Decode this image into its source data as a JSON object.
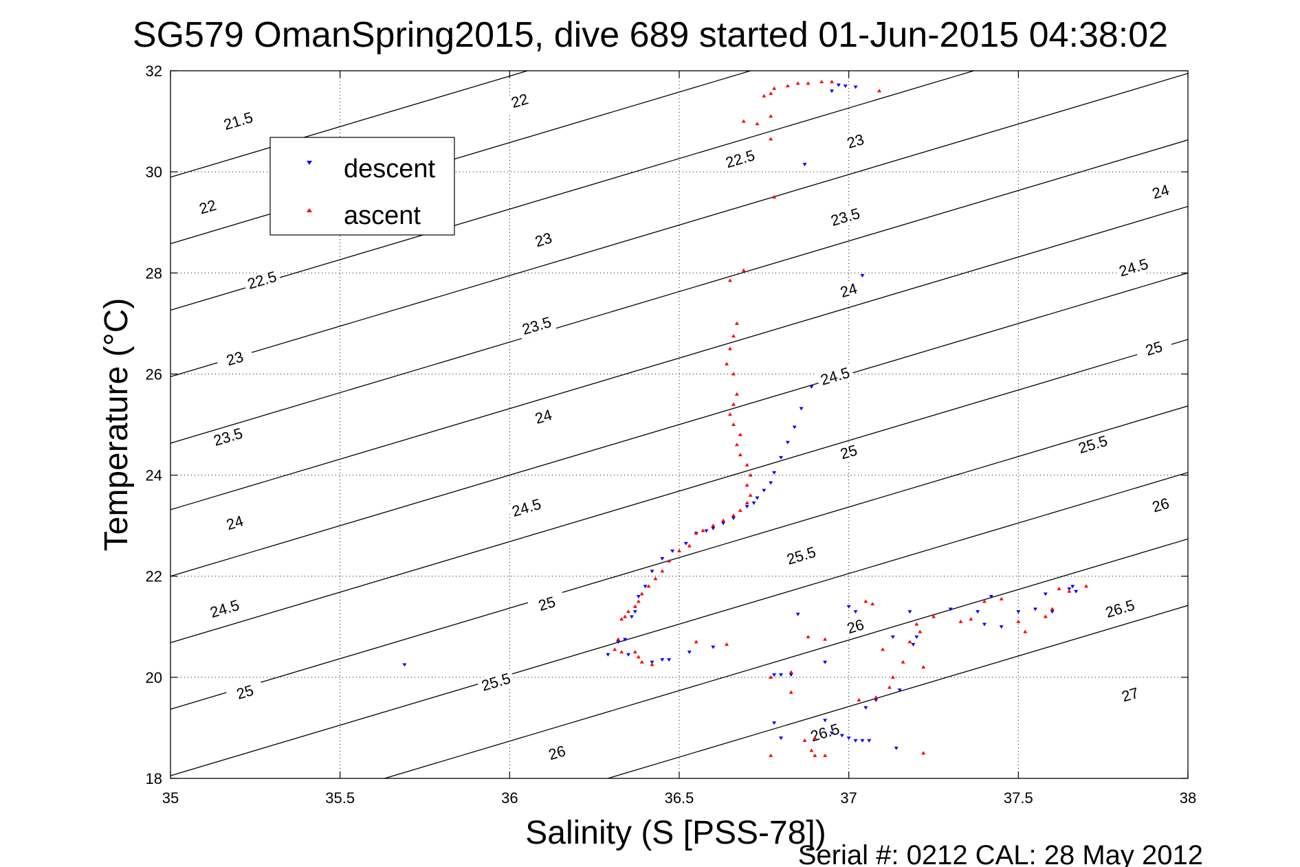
{
  "chart_data": {
    "type": "scatter",
    "title": "SG579 OmanSpring2015, dive 689 started 01-Jun-2015 04:38:02",
    "xlabel": "Salinity (S [PSS-78])",
    "ylabel": "Temperature (°C)",
    "footer": "Serial #: 0212  CAL: 28 May 2012",
    "xlim": [
      35,
      38
    ],
    "ylim": [
      18,
      32
    ],
    "xticks": [
      35,
      35.5,
      36,
      36.5,
      37,
      37.5,
      38
    ],
    "xtick_labels": [
      "35",
      "35.5",
      "36",
      "36.5",
      "37",
      "37.5",
      "38"
    ],
    "yticks": [
      18,
      20,
      22,
      24,
      26,
      28,
      30,
      32
    ],
    "ytick_labels": [
      "18",
      "20",
      "22",
      "24",
      "26",
      "28",
      "30",
      "32"
    ],
    "grid": true,
    "legend_position": "upper-left",
    "colors": {
      "descent": "#0000ff",
      "ascent": "#ff0000",
      "contour": "#000000"
    },
    "density_contours": {
      "levels": [
        21.5,
        22,
        22.5,
        23,
        23.5,
        24,
        24.5,
        25,
        25.5,
        26,
        26.5,
        27
      ],
      "labels": [
        {
          "text": "21.5",
          "s": 35.2,
          "t": 31.0
        },
        {
          "text": "22",
          "s": 36.03,
          "t": 31.4
        },
        {
          "text": "22.5",
          "s": 36.68,
          "t": 30.25
        },
        {
          "text": "23",
          "s": 37.02,
          "t": 30.6
        },
        {
          "text": "22",
          "s": 35.11,
          "t": 29.3
        },
        {
          "text": "23",
          "s": 36.1,
          "t": 28.65
        },
        {
          "text": "23.5",
          "s": 36.99,
          "t": 29.1
        },
        {
          "text": "24",
          "s": 37.92,
          "t": 29.6
        },
        {
          "text": "22.5",
          "s": 35.27,
          "t": 27.85
        },
        {
          "text": "23.5",
          "s": 36.08,
          "t": 26.95
        },
        {
          "text": "24",
          "s": 37.0,
          "t": 27.65
        },
        {
          "text": "24.5",
          "s": 37.84,
          "t": 28.1
        },
        {
          "text": "23",
          "s": 35.19,
          "t": 26.3
        },
        {
          "text": "24",
          "s": 36.1,
          "t": 25.15
        },
        {
          "text": "24.5",
          "s": 36.96,
          "t": 25.95
        },
        {
          "text": "25",
          "s": 37.9,
          "t": 26.5
        },
        {
          "text": "23.5",
          "s": 35.17,
          "t": 24.75
        },
        {
          "text": "24.5",
          "s": 36.05,
          "t": 23.35
        },
        {
          "text": "25",
          "s": 37.0,
          "t": 24.45
        },
        {
          "text": "25.5",
          "s": 37.72,
          "t": 24.6
        },
        {
          "text": "24",
          "s": 35.19,
          "t": 23.05
        },
        {
          "text": "25",
          "s": 36.11,
          "t": 21.45
        },
        {
          "text": "25.5",
          "s": 36.86,
          "t": 22.4
        },
        {
          "text": "26",
          "s": 37.92,
          "t": 23.4
        },
        {
          "text": "24.5",
          "s": 35.16,
          "t": 21.35
        },
        {
          "text": "25.5",
          "s": 35.96,
          "t": 19.9
        },
        {
          "text": "26",
          "s": 37.02,
          "t": 21.0
        },
        {
          "text": "26.5",
          "s": 37.8,
          "t": 21.35
        },
        {
          "text": "25",
          "s": 35.22,
          "t": 19.7
        },
        {
          "text": "26",
          "s": 36.14,
          "t": 18.5
        },
        {
          "text": "26.5",
          "s": 36.93,
          "t": 18.9
        },
        {
          "text": "27",
          "s": 37.83,
          "t": 19.65
        }
      ]
    },
    "series": [
      {
        "name": "descent",
        "marker": "triangle-down",
        "points": [
          [
            36.97,
            31.72
          ],
          [
            36.99,
            31.7
          ],
          [
            36.95,
            31.6
          ],
          [
            37.02,
            31.68
          ],
          [
            36.87,
            30.15
          ],
          [
            37.04,
            27.95
          ],
          [
            36.89,
            25.75
          ],
          [
            36.86,
            25.32
          ],
          [
            36.84,
            24.95
          ],
          [
            36.82,
            24.65
          ],
          [
            36.8,
            24.35
          ],
          [
            36.78,
            24.05
          ],
          [
            36.77,
            23.85
          ],
          [
            36.75,
            23.7
          ],
          [
            36.73,
            23.55
          ],
          [
            36.72,
            23.45
          ],
          [
            36.7,
            23.38
          ],
          [
            36.66,
            23.15
          ],
          [
            36.63,
            23.05
          ],
          [
            36.6,
            22.95
          ],
          [
            36.58,
            22.9
          ],
          [
            36.55,
            22.85
          ],
          [
            36.52,
            22.65
          ],
          [
            36.48,
            22.5
          ],
          [
            36.45,
            22.35
          ],
          [
            36.42,
            22.1
          ],
          [
            36.4,
            21.8
          ],
          [
            36.38,
            21.6
          ],
          [
            36.37,
            21.3
          ],
          [
            36.36,
            21.2
          ],
          [
            36.34,
            20.75
          ],
          [
            36.32,
            20.7
          ],
          [
            36.29,
            20.45
          ],
          [
            36.35,
            20.45
          ],
          [
            36.42,
            20.3
          ],
          [
            36.45,
            20.35
          ],
          [
            36.47,
            20.35
          ],
          [
            36.53,
            20.5
          ],
          [
            35.69,
            20.25
          ],
          [
            36.6,
            20.6
          ],
          [
            36.78,
            20.05
          ],
          [
            36.8,
            20.05
          ],
          [
            36.83,
            20.05
          ],
          [
            36.8,
            18.8
          ],
          [
            36.78,
            19.1
          ],
          [
            36.93,
            19.15
          ],
          [
            36.95,
            18.9
          ],
          [
            36.98,
            18.85
          ],
          [
            37.0,
            18.8
          ],
          [
            37.02,
            18.75
          ],
          [
            37.04,
            18.75
          ],
          [
            37.06,
            18.75
          ],
          [
            37.05,
            19.4
          ],
          [
            37.08,
            19.55
          ],
          [
            37.15,
            19.75
          ],
          [
            37.14,
            18.6
          ],
          [
            37.0,
            21.4
          ],
          [
            37.02,
            21.3
          ],
          [
            36.85,
            21.25
          ],
          [
            36.93,
            20.3
          ],
          [
            37.18,
            21.3
          ],
          [
            37.3,
            21.35
          ],
          [
            37.38,
            21.3
          ],
          [
            37.42,
            21.6
          ],
          [
            37.5,
            21.3
          ],
          [
            37.55,
            21.35
          ],
          [
            37.6,
            21.3
          ],
          [
            37.65,
            21.75
          ],
          [
            37.66,
            21.8
          ],
          [
            37.58,
            21.65
          ],
          [
            37.45,
            21.0
          ],
          [
            37.4,
            21.05
          ],
          [
            37.2,
            20.8
          ],
          [
            37.19,
            20.65
          ],
          [
            37.13,
            20.8
          ],
          [
            37.67,
            21.7
          ]
        ]
      },
      {
        "name": "ascent",
        "marker": "triangle-up",
        "points": [
          [
            36.75,
            31.5
          ],
          [
            36.78,
            31.65
          ],
          [
            36.82,
            31.7
          ],
          [
            36.85,
            31.75
          ],
          [
            36.88,
            31.75
          ],
          [
            36.92,
            31.78
          ],
          [
            36.95,
            31.78
          ],
          [
            36.77,
            31.55
          ],
          [
            37.09,
            31.6
          ],
          [
            36.77,
            31.1
          ],
          [
            36.69,
            31.0
          ],
          [
            36.73,
            30.95
          ],
          [
            36.77,
            30.65
          ],
          [
            36.78,
            29.5
          ],
          [
            36.69,
            28.05
          ],
          [
            36.65,
            27.85
          ],
          [
            36.67,
            27.0
          ],
          [
            36.66,
            26.75
          ],
          [
            36.65,
            26.5
          ],
          [
            36.64,
            26.2
          ],
          [
            36.66,
            26.0
          ],
          [
            36.67,
            25.6
          ],
          [
            36.66,
            25.4
          ],
          [
            36.65,
            25.2
          ],
          [
            36.66,
            25.0
          ],
          [
            36.68,
            24.8
          ],
          [
            36.67,
            24.6
          ],
          [
            36.68,
            24.4
          ],
          [
            36.7,
            24.2
          ],
          [
            36.71,
            24.0
          ],
          [
            36.7,
            23.8
          ],
          [
            36.71,
            23.6
          ],
          [
            36.7,
            23.45
          ],
          [
            36.68,
            23.3
          ],
          [
            36.66,
            23.2
          ],
          [
            36.63,
            23.1
          ],
          [
            36.6,
            23.0
          ],
          [
            36.57,
            22.9
          ],
          [
            36.55,
            22.85
          ],
          [
            36.53,
            22.6
          ],
          [
            36.5,
            22.5
          ],
          [
            36.47,
            22.3
          ],
          [
            36.45,
            22.1
          ],
          [
            36.43,
            21.95
          ],
          [
            36.41,
            21.8
          ],
          [
            36.39,
            21.65
          ],
          [
            36.38,
            21.5
          ],
          [
            36.37,
            21.4
          ],
          [
            36.35,
            21.3
          ],
          [
            36.34,
            21.2
          ],
          [
            36.33,
            21.15
          ],
          [
            36.32,
            20.75
          ],
          [
            36.31,
            20.55
          ],
          [
            36.33,
            20.5
          ],
          [
            36.37,
            20.5
          ],
          [
            36.38,
            20.4
          ],
          [
            36.39,
            20.3
          ],
          [
            36.42,
            20.25
          ],
          [
            36.55,
            20.7
          ],
          [
            36.64,
            20.65
          ],
          [
            36.77,
            20.0
          ],
          [
            36.83,
            20.1
          ],
          [
            36.83,
            19.7
          ],
          [
            36.77,
            18.45
          ],
          [
            36.87,
            18.75
          ],
          [
            36.9,
            18.8
          ],
          [
            36.89,
            18.55
          ],
          [
            36.9,
            18.45
          ],
          [
            36.93,
            18.45
          ],
          [
            37.03,
            19.55
          ],
          [
            37.08,
            19.6
          ],
          [
            37.12,
            19.8
          ],
          [
            37.13,
            20.0
          ],
          [
            37.16,
            20.3
          ],
          [
            37.18,
            20.7
          ],
          [
            37.21,
            20.9
          ],
          [
            37.22,
            20.2
          ],
          [
            37.22,
            18.5
          ],
          [
            37.05,
            21.5
          ],
          [
            37.07,
            21.45
          ],
          [
            36.93,
            20.75
          ],
          [
            36.88,
            20.8
          ],
          [
            37.1,
            20.55
          ],
          [
            37.2,
            21.05
          ],
          [
            37.25,
            21.2
          ],
          [
            37.33,
            21.1
          ],
          [
            37.4,
            21.5
          ],
          [
            37.45,
            21.55
          ],
          [
            37.5,
            21.1
          ],
          [
            37.58,
            21.2
          ],
          [
            37.6,
            21.35
          ],
          [
            37.65,
            21.7
          ],
          [
            37.7,
            21.8
          ],
          [
            37.62,
            21.75
          ],
          [
            37.52,
            20.9
          ],
          [
            37.36,
            21.15
          ]
        ]
      }
    ]
  }
}
